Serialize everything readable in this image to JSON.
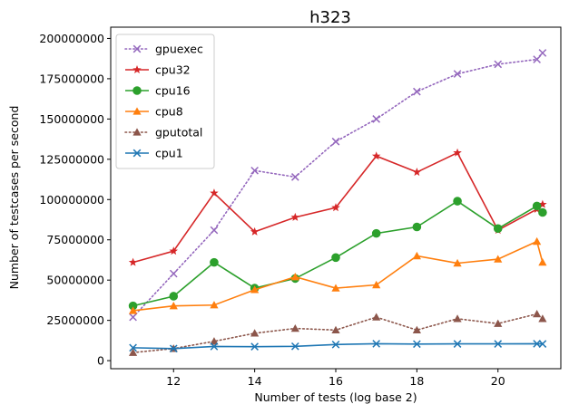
{
  "chart_data": {
    "type": "line",
    "title": "h323",
    "xlabel": "Number of tests (log base 2)",
    "ylabel": "Number of testcases per second",
    "xlim": [
      10.45,
      21.55
    ],
    "ylim": [
      -5000000,
      207000000
    ],
    "x_ticks": [
      12,
      14,
      16,
      18,
      20
    ],
    "x_tick_labels": [
      "12",
      "14",
      "16",
      "18",
      "20"
    ],
    "y_ticks": [
      0,
      25000000,
      50000000,
      75000000,
      100000000,
      125000000,
      150000000,
      175000000,
      200000000
    ],
    "y_tick_labels": [
      "0",
      "25000000",
      "50000000",
      "75000000",
      "100000000",
      "125000000",
      "150000000",
      "175000000",
      "200000000"
    ],
    "grid": false,
    "legend_position": "top-left",
    "series": [
      {
        "name": "gpuexec",
        "color": "#9467bd",
        "linestyle": "dotted",
        "marker": "x",
        "x": [
          11,
          12,
          13,
          14,
          15,
          16,
          17,
          18,
          19,
          20,
          20.96,
          21.1
        ],
        "y": [
          27000000,
          54000000,
          81000000,
          118000000,
          114000000,
          136000000,
          150000000,
          167000000,
          178000000,
          184000000,
          187000000,
          191000000
        ]
      },
      {
        "name": "cpu32",
        "color": "#d62728",
        "linestyle": "solid",
        "marker": "star",
        "x": [
          11,
          12,
          13,
          14,
          15,
          16,
          17,
          18,
          19,
          20,
          20.96,
          21.1
        ],
        "y": [
          61000000,
          68000000,
          104000000,
          80000000,
          89000000,
          95000000,
          127000000,
          117000000,
          129000000,
          81000000,
          94000000,
          97000000
        ]
      },
      {
        "name": "cpu16",
        "color": "#2ca02c",
        "linestyle": "solid",
        "marker": "circle",
        "x": [
          11,
          12,
          13,
          14,
          15,
          16,
          17,
          18,
          19,
          20,
          20.96,
          21.1
        ],
        "y": [
          34000000,
          40000000,
          61000000,
          45000000,
          51000000,
          64000000,
          79000000,
          83000000,
          99000000,
          82000000,
          96000000,
          92000000
        ]
      },
      {
        "name": "cpu8",
        "color": "#ff7f0e",
        "linestyle": "solid",
        "marker": "triangle",
        "x": [
          11,
          12,
          13,
          14,
          15,
          16,
          17,
          18,
          19,
          20,
          20.96,
          21.1
        ],
        "y": [
          31000000,
          34000000,
          34500000,
          44000000,
          52000000,
          45000000,
          47000000,
          65000000,
          60500000,
          63000000,
          74000000,
          61000000
        ]
      },
      {
        "name": "gputotal",
        "color": "#8c564b",
        "linestyle": "dotted",
        "marker": "triangle",
        "x": [
          11,
          12,
          13,
          14,
          15,
          16,
          17,
          18,
          19,
          20,
          20.96,
          21.1
        ],
        "y": [
          5000000,
          7500000,
          12000000,
          17000000,
          20000000,
          19000000,
          27000000,
          19000000,
          26000000,
          23000000,
          29000000,
          26000000
        ]
      },
      {
        "name": "cpu1",
        "color": "#1f77b4",
        "linestyle": "solid",
        "marker": "x",
        "x": [
          11,
          12,
          13,
          14,
          15,
          16,
          17,
          18,
          19,
          20,
          20.96,
          21.1
        ],
        "y": [
          8000000,
          7500000,
          8800000,
          8700000,
          8900000,
          10000000,
          10500000,
          10300000,
          10400000,
          10400000,
          10500000,
          10400000
        ]
      }
    ]
  }
}
